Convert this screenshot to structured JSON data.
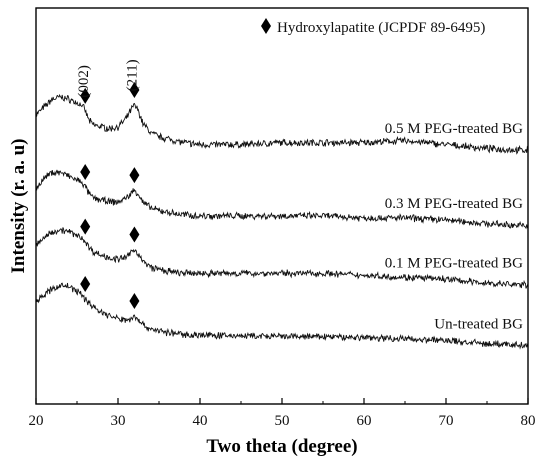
{
  "chart_data": {
    "type": "line",
    "xlabel": "Two theta (degree)",
    "ylabel": "Intensity (r. a. u)",
    "xlim": [
      20,
      80
    ],
    "xticks": [
      20,
      30,
      40,
      50,
      60,
      70,
      80
    ],
    "grid": false,
    "legend": {
      "placement": "top-right",
      "marker": "diamond",
      "text": "Hydroxylapatite (JCPDF 89-6495)"
    },
    "peak_labels": [
      {
        "x": 26,
        "text": "(002)"
      },
      {
        "x": 32,
        "text": "(211)"
      }
    ],
    "series": [
      {
        "name": "0.5 M PEG-treated BG",
        "x": [
          20,
          21,
          22,
          23,
          24,
          25,
          25.6,
          26,
          26.5,
          27,
          28,
          29,
          30,
          31,
          31.5,
          32,
          32.5,
          33,
          34,
          35,
          36,
          37,
          38,
          40,
          45,
          50,
          55,
          60,
          65,
          70,
          75,
          80
        ],
        "y": [
          0.73,
          0.75,
          0.77,
          0.775,
          0.77,
          0.76,
          0.755,
          0.74,
          0.715,
          0.705,
          0.7,
          0.695,
          0.7,
          0.72,
          0.74,
          0.755,
          0.74,
          0.71,
          0.685,
          0.675,
          0.67,
          0.665,
          0.66,
          0.655,
          0.655,
          0.66,
          0.66,
          0.66,
          0.665,
          0.655,
          0.645,
          0.64
        ],
        "markers": [
          26,
          32
        ]
      },
      {
        "name": "0.3 M PEG-treated BG",
        "x": [
          20,
          21,
          22,
          23,
          24,
          25,
          25.6,
          26,
          26.5,
          27,
          28,
          29,
          30,
          31,
          31.5,
          32,
          32.5,
          33,
          34,
          35,
          36,
          37,
          38,
          40,
          45,
          50,
          55,
          60,
          65,
          70,
          75,
          80
        ],
        "y": [
          0.545,
          0.57,
          0.585,
          0.585,
          0.575,
          0.565,
          0.56,
          0.548,
          0.53,
          0.52,
          0.515,
          0.51,
          0.51,
          0.52,
          0.53,
          0.54,
          0.53,
          0.51,
          0.495,
          0.488,
          0.485,
          0.48,
          0.478,
          0.475,
          0.475,
          0.475,
          0.475,
          0.47,
          0.47,
          0.465,
          0.455,
          0.45
        ],
        "markers": [
          26,
          32
        ]
      },
      {
        "name": "0.1 M PEG-treated BG",
        "x": [
          20,
          21,
          22,
          23,
          24,
          25,
          25.6,
          26,
          26.5,
          27,
          28,
          29,
          30,
          31,
          31.5,
          32,
          32.5,
          33,
          34,
          35,
          36,
          37,
          38,
          40,
          45,
          50,
          55,
          60,
          65,
          70,
          75,
          80
        ],
        "y": [
          0.4,
          0.42,
          0.435,
          0.44,
          0.435,
          0.425,
          0.42,
          0.41,
          0.395,
          0.385,
          0.375,
          0.37,
          0.365,
          0.37,
          0.38,
          0.39,
          0.38,
          0.36,
          0.345,
          0.34,
          0.335,
          0.332,
          0.33,
          0.33,
          0.33,
          0.33,
          0.33,
          0.325,
          0.32,
          0.315,
          0.305,
          0.3
        ],
        "markers": [
          26,
          32
        ]
      },
      {
        "name": "Un-treated BG",
        "x": [
          20,
          21,
          22,
          23,
          24,
          25,
          25.6,
          26,
          26.5,
          27,
          28,
          29,
          30,
          31,
          31.5,
          32,
          32.5,
          33,
          34,
          35,
          36,
          37,
          38,
          40,
          45,
          50,
          55,
          60,
          65,
          70,
          75,
          80
        ],
        "y": [
          0.26,
          0.275,
          0.29,
          0.3,
          0.297,
          0.285,
          0.275,
          0.265,
          0.255,
          0.245,
          0.232,
          0.222,
          0.215,
          0.212,
          0.215,
          0.222,
          0.215,
          0.2,
          0.19,
          0.185,
          0.18,
          0.178,
          0.176,
          0.174,
          0.172,
          0.17,
          0.17,
          0.168,
          0.165,
          0.16,
          0.152,
          0.148
        ],
        "markers": [
          26,
          32
        ]
      }
    ]
  }
}
